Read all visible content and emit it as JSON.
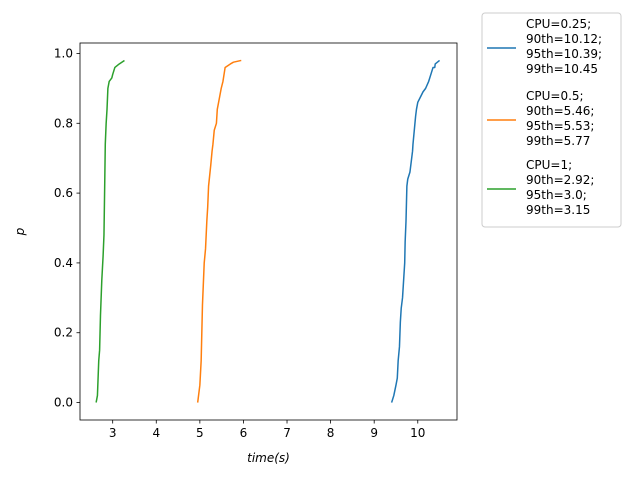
{
  "chart_data": {
    "type": "line",
    "title": "",
    "xlabel": "time(s)",
    "ylabel": "p",
    "xlim": [
      2.25,
      10.9
    ],
    "ylim": [
      -0.05,
      1.03
    ],
    "xticks": [
      3,
      4,
      5,
      6,
      7,
      8,
      9,
      10
    ],
    "yticks": [
      0.0,
      0.2,
      0.4,
      0.6,
      0.8,
      1.0
    ],
    "xtick_labels": [
      "3",
      "4",
      "5",
      "6",
      "7",
      "8",
      "9",
      "10"
    ],
    "ytick_labels": [
      "0.0",
      "0.2",
      "0.4",
      "0.6",
      "0.8",
      "1.0"
    ],
    "grid": false,
    "legend_position": "outside-right-top",
    "series": [
      {
        "name": "CPU=0.25;\n90th=10.12;\n95th=10.39;\n99th=10.45",
        "legend_lines": [
          "CPU=0.25;",
          "90th=10.12;",
          "95th=10.39;",
          "99th=10.45"
        ],
        "color": "#1f77b4",
        "x": [
          9.4,
          9.45,
          9.5,
          9.53,
          9.55,
          9.58,
          9.6,
          9.62,
          9.63,
          9.65,
          9.7,
          9.71,
          9.73,
          9.75,
          9.77,
          9.82,
          9.88,
          9.89,
          9.95,
          9.97,
          10.0,
          10.08,
          10.12,
          10.18,
          10.25,
          10.3,
          10.35,
          10.39,
          10.4,
          10.45,
          10.5
        ],
        "y": [
          0.0,
          0.02,
          0.05,
          0.07,
          0.12,
          0.16,
          0.23,
          0.27,
          0.28,
          0.3,
          0.4,
          0.46,
          0.52,
          0.62,
          0.64,
          0.66,
          0.72,
          0.74,
          0.82,
          0.84,
          0.86,
          0.88,
          0.89,
          0.9,
          0.92,
          0.94,
          0.96,
          0.96,
          0.97,
          0.975,
          0.98
        ]
      },
      {
        "name": "CPU=0.5;\n90th=5.46;\n95th=5.53;\n99th=5.77",
        "legend_lines": [
          "CPU=0.5;",
          "90th=5.46;",
          "95th=5.53;",
          "99th=5.77"
        ],
        "color": "#ff7f0e",
        "x": [
          4.95,
          5.0,
          5.03,
          5.06,
          5.1,
          5.13,
          5.16,
          5.18,
          5.2,
          5.25,
          5.28,
          5.3,
          5.33,
          5.38,
          5.4,
          5.43,
          5.46,
          5.49,
          5.53,
          5.58,
          5.7,
          5.77,
          5.95
        ],
        "y": [
          0.0,
          0.05,
          0.12,
          0.28,
          0.4,
          0.44,
          0.52,
          0.56,
          0.62,
          0.68,
          0.72,
          0.74,
          0.78,
          0.8,
          0.84,
          0.86,
          0.88,
          0.9,
          0.92,
          0.96,
          0.97,
          0.975,
          0.98
        ]
      },
      {
        "name": "CPU=1;\n90th=2.92;\n95th=3.0;\n99th=3.15",
        "legend_lines": [
          "CPU=1;",
          "90th=2.92;",
          "95th=3.0;",
          "99th=3.15"
        ],
        "color": "#2ca02c",
        "x": [
          2.62,
          2.65,
          2.68,
          2.7,
          2.72,
          2.75,
          2.78,
          2.8,
          2.82,
          2.83,
          2.85,
          2.87,
          2.89,
          2.92,
          2.98,
          3.0,
          3.05,
          3.1,
          3.15,
          3.27
        ],
        "y": [
          0.0,
          0.02,
          0.12,
          0.15,
          0.25,
          0.35,
          0.42,
          0.48,
          0.65,
          0.74,
          0.8,
          0.84,
          0.9,
          0.92,
          0.93,
          0.94,
          0.96,
          0.965,
          0.97,
          0.98
        ]
      }
    ]
  }
}
